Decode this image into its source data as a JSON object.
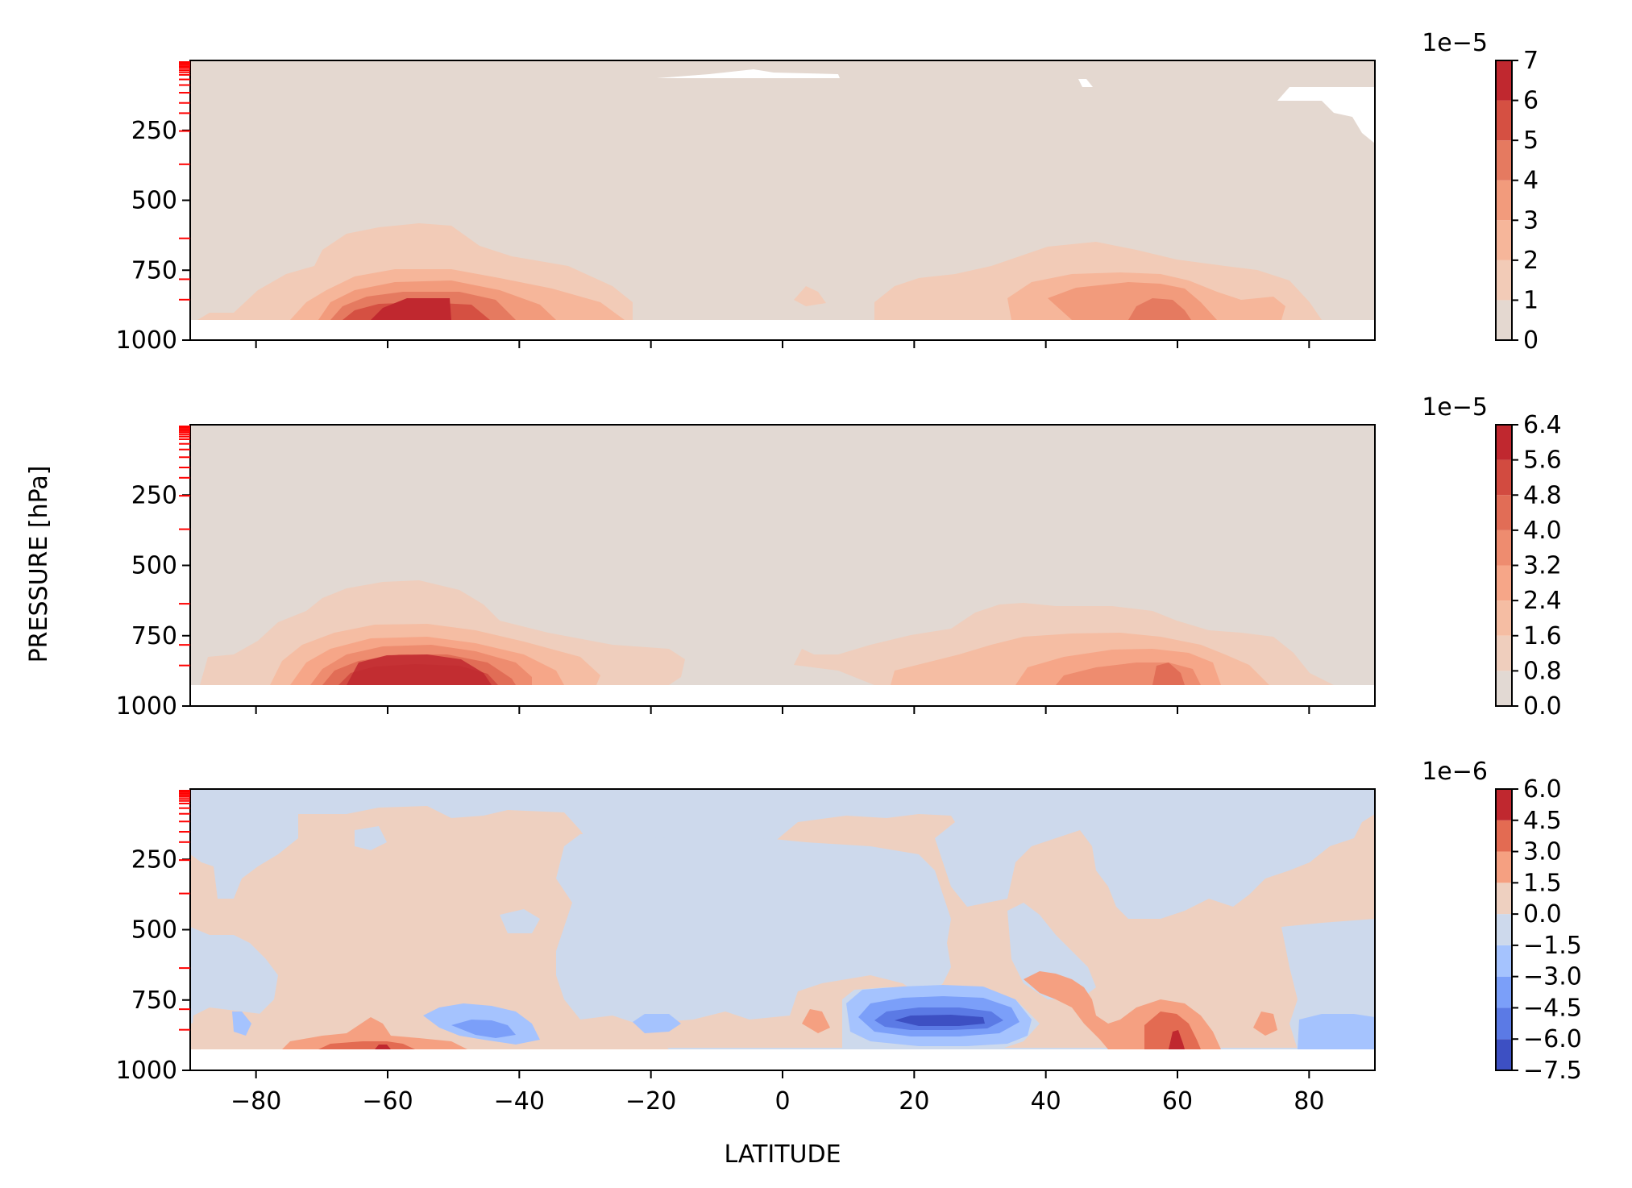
{
  "figure": {
    "shared_ylabel": "PRESSURE [hPa]",
    "shared_xlabel": "LATITUDE"
  },
  "chart_data": [
    {
      "type": "heatmap",
      "panel": "top",
      "xlabel": "LATITUDE",
      "ylabel": "PRESSURE [hPa]",
      "xlim": [
        -90,
        90
      ],
      "ylim": [
        1000,
        0
      ],
      "x_ticks": [
        -80,
        -60,
        -40,
        -20,
        0,
        20,
        40,
        60,
        80
      ],
      "y_ticks": [
        250,
        500,
        750,
        1000
      ],
      "x_tick_labels_visible": false,
      "colormap": "coolwarm",
      "colorbar": {
        "levels": [
          0,
          1,
          2,
          3,
          4,
          5,
          6,
          7
        ],
        "tick_labels": [
          "0",
          "1",
          "2",
          "3",
          "4",
          "5",
          "6",
          "7"
        ],
        "offset_label": "1e−5",
        "colors": [
          "#e4d8d0",
          "#f2cbb7",
          "#f6b69a",
          "#f29b7c",
          "#e57a60",
          "#d55042",
          "#c0282f"
        ]
      },
      "features": [
        {
          "kind": "maximum",
          "lat_center": -55,
          "p_center": 880,
          "peak": 6.5,
          "scale": 1e-05
        },
        {
          "kind": "maximum",
          "lat_center": 55,
          "p_center": 870,
          "peak": 4.5,
          "scale": 1e-05
        }
      ]
    },
    {
      "type": "heatmap",
      "panel": "middle",
      "xlabel": "LATITUDE",
      "ylabel": "PRESSURE [hPa]",
      "xlim": [
        -90,
        90
      ],
      "ylim": [
        1000,
        0
      ],
      "x_ticks": [
        -80,
        -60,
        -40,
        -20,
        0,
        20,
        40,
        60,
        80
      ],
      "y_ticks": [
        250,
        500,
        750,
        1000
      ],
      "x_tick_labels_visible": false,
      "colormap": "coolwarm",
      "colorbar": {
        "levels": [
          0.0,
          0.8,
          1.6,
          2.4,
          3.2,
          4.0,
          4.8,
          5.6,
          6.4
        ],
        "tick_labels": [
          "0.0",
          "0.8",
          "1.6",
          "2.4",
          "3.2",
          "4.0",
          "4.8",
          "5.6",
          "6.4"
        ],
        "offset_label": "1e−5",
        "colors": [
          "#e2d9d3",
          "#efcebd",
          "#f5bda3",
          "#f6a688",
          "#ee8c6f",
          "#e16d56",
          "#d24b40",
          "#c0282f"
        ]
      },
      "features": [
        {
          "kind": "maximum",
          "lat_center": -54,
          "p_center": 880,
          "peak": 6.0,
          "scale": 1e-05
        },
        {
          "kind": "maximum",
          "lat_center": 56,
          "p_center": 880,
          "peak": 4.2,
          "scale": 1e-05
        }
      ]
    },
    {
      "type": "heatmap",
      "panel": "bottom",
      "xlabel": "LATITUDE",
      "ylabel": "PRESSURE [hPa]",
      "xlim": [
        -90,
        90
      ],
      "ylim": [
        1000,
        0
      ],
      "x_ticks": [
        -80,
        -60,
        -40,
        -20,
        0,
        20,
        40,
        60,
        80
      ],
      "x_tick_labels": [
        "−80",
        "−60",
        "−40",
        "−20",
        "0",
        "20",
        "40",
        "60",
        "80"
      ],
      "y_ticks": [
        250,
        500,
        750,
        1000
      ],
      "colormap": "coolwarm",
      "colorbar": {
        "levels": [
          -7.5,
          -6.0,
          -4.5,
          -3.0,
          -1.5,
          0.0,
          1.5,
          3.0,
          4.5,
          6.0
        ],
        "tick_labels": [
          "−7.5",
          "−6.0",
          "−4.5",
          "−3.0",
          "−1.5",
          "0.0",
          "1.5",
          "3.0",
          "4.5",
          "6.0"
        ],
        "offset_label": "1e−6",
        "colors": [
          "#3d50c3",
          "#5b7ae5",
          "#7b9ff9",
          "#a5c3fe",
          "#cdd9ec",
          "#eed0c0",
          "#f5a081",
          "#e36b52",
          "#c0282f"
        ]
      },
      "features": [
        {
          "kind": "minimum",
          "lat_center": 27,
          "p_center": 850,
          "peak": -7.0,
          "scale": 1e-06
        },
        {
          "kind": "minimum",
          "lat_center": -43,
          "p_center": 850,
          "peak": -4.0,
          "scale": 1e-06
        },
        {
          "kind": "maximum",
          "lat_center": 60,
          "p_center": 900,
          "peak": 5.5,
          "scale": 1e-06
        },
        {
          "kind": "maximum",
          "lat_center": -60,
          "p_center": 920,
          "peak": 4.5,
          "scale": 1e-06
        }
      ]
    }
  ]
}
